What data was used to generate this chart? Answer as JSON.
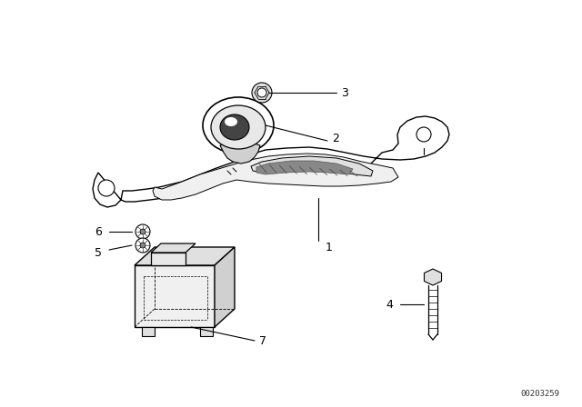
{
  "background_color": "#ffffff",
  "line_color": "#000000",
  "part_number_text": "00203259",
  "fig_width": 6.4,
  "fig_height": 4.48,
  "dpi": 100
}
